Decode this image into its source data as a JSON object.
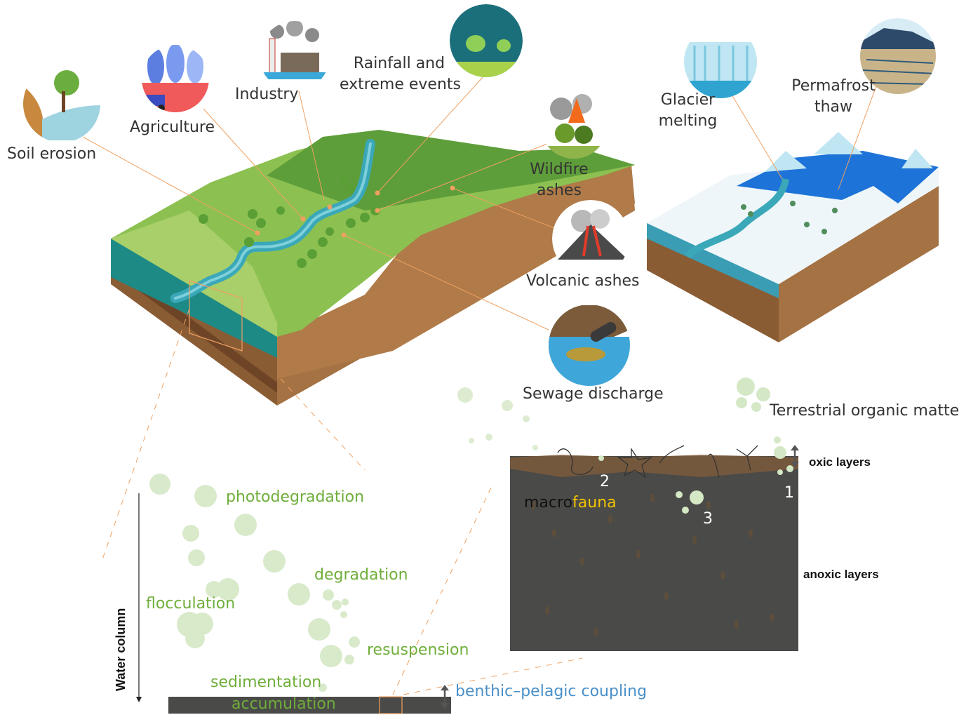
{
  "sources": {
    "soil_erosion": "Soil erosion",
    "agriculture": "Agriculture",
    "industry": "Industry",
    "rainfall": [
      "Rainfall and",
      "extreme events"
    ],
    "wildfire": [
      "Wildfire",
      "ashes"
    ],
    "volcanic": "Volcanic ashes",
    "sewage": "Sewage discharge",
    "glacier": [
      "Glacier",
      "melting"
    ],
    "permafrost": [
      "Permafrost",
      "thaw"
    ]
  },
  "water_column": {
    "axis_label": "Water column",
    "processes": {
      "photodegradation": "photodegradation",
      "degradation": "degradation",
      "flocculation": "flocculation",
      "resuspension": "resuspension",
      "sedimentation": "sedimentation",
      "accumulation": "accumulation",
      "coupling": "benthic–pelagic coupling"
    }
  },
  "sediment": {
    "legend": "Terrestrial organic matter",
    "oxic": "oxic layers",
    "anoxic": "anoxic layers",
    "macro": "macro",
    "fauna": "fauna",
    "markers": [
      "1",
      "2",
      "3"
    ]
  },
  "colors": {
    "land_green": "#7fb44a",
    "river": "#3aa8b8",
    "soil": "#9b6d3f",
    "sediment": "#4a4a48",
    "particle": "#d5e8c6",
    "process_text": "#6fae3b",
    "coupling_text": "#4a90c8",
    "fauna_text": "#f2c200",
    "leader_line": "#f0a060"
  }
}
